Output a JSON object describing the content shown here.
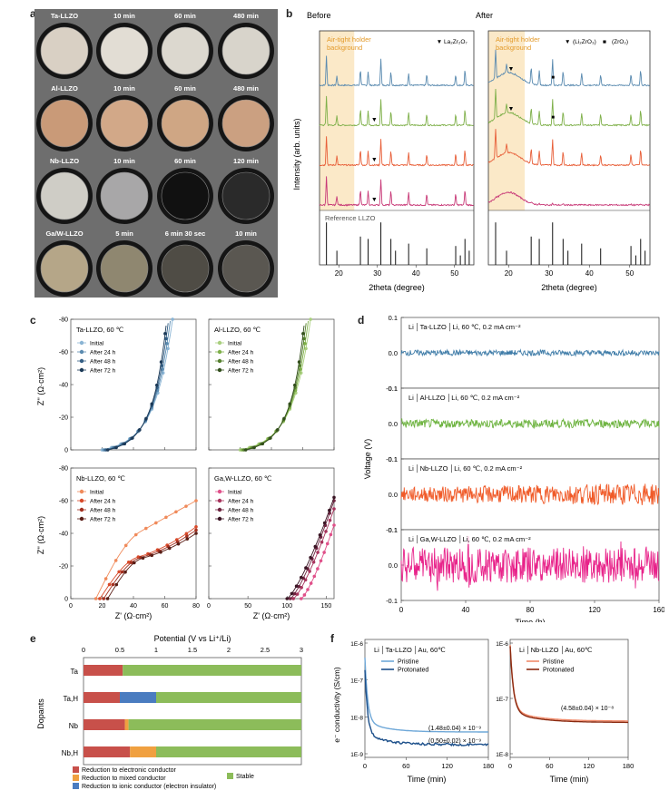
{
  "panel_labels": {
    "a": "a",
    "b": "b",
    "c": "c",
    "d": "d",
    "e": "e",
    "f": "f"
  },
  "panel_a": {
    "rows": [
      {
        "name": "Ta-LLZO",
        "times": [
          "10 min",
          "60 min",
          "480 min"
        ],
        "colors": [
          "#d9d0c4",
          "#e2ddd4",
          "#dcd8cf",
          "#d8d4cb"
        ]
      },
      {
        "name": "Al-LLZO",
        "times": [
          "10 min",
          "60 min",
          "480 min"
        ],
        "colors": [
          "#c99a78",
          "#d2a888",
          "#cfa684",
          "#cba081"
        ]
      },
      {
        "name": "Nb-LLZO",
        "times": [
          "10 min",
          "60 min",
          "120 min"
        ],
        "colors": [
          "#cfcdc6",
          "#a8a7a8",
          "#111111",
          "#2a2a2a"
        ]
      },
      {
        "name": "Ga/W-LLZO",
        "times": [
          "5 min",
          "6 min 30 sec",
          "10 min"
        ],
        "colors": [
          "#b5a688",
          "#8f8770",
          "#4f4c45",
          "#5a5751"
        ]
      }
    ]
  },
  "chart_data": [
    {
      "panel": "b-before",
      "type": "line",
      "title": "Before",
      "xlabel": "2theta (degree)",
      "ylabel": "Intensity (arb. units)",
      "xlim": [
        15,
        55
      ],
      "shaded_label": "Air-tight holder background",
      "marker_label": "La₂Zr₂O₇",
      "reference_label": "Reference LLZO",
      "xticks": [
        20,
        30,
        40,
        50
      ],
      "series_colors": [
        "#5b8bb0",
        "#7fb04a",
        "#e8603a",
        "#c83a78"
      ],
      "reference_peaks": [
        [
          16.8,
          0.9
        ],
        [
          19.5,
          0.3
        ],
        [
          25.6,
          0.6
        ],
        [
          27.6,
          0.55
        ],
        [
          30.9,
          0.9
        ],
        [
          33.5,
          0.55
        ],
        [
          34.7,
          0.3
        ],
        [
          38.1,
          0.45
        ],
        [
          42.8,
          0.35
        ],
        [
          50.3,
          0.4
        ],
        [
          51.5,
          0.2
        ],
        [
          52.7,
          0.55
        ],
        [
          53.8,
          0.3
        ]
      ]
    },
    {
      "panel": "b-after",
      "type": "line",
      "title": "After",
      "xlabel": "2theta (degree)",
      "xlim": [
        15,
        55
      ],
      "shaded_label": "Air-tight holder background",
      "marker_label_1": "(Li₂ZrO₃)",
      "marker_label_2": "(ZrO₂)",
      "xticks": [
        20,
        30,
        40,
        50
      ],
      "series_colors": [
        "#5b8bb0",
        "#7fb04a",
        "#e8603a",
        "#c83a78"
      ]
    },
    {
      "panel": "c-ta",
      "type": "line",
      "title": "Ta-LLZO, 60 ℃",
      "xlim": [
        0,
        80
      ],
      "ylim": [
        0,
        -80
      ],
      "xticks": [
        0,
        20,
        40,
        60,
        80
      ],
      "yticks": [
        0,
        -20,
        -40,
        -60,
        -80
      ],
      "series": [
        {
          "name": "Initial",
          "color": "#8ab4d4"
        },
        {
          "name": "After 24 h",
          "color": "#5b8bb0"
        },
        {
          "name": "After 48 h",
          "color": "#345f85"
        },
        {
          "name": "After 72 h",
          "color": "#1c3a58"
        }
      ]
    },
    {
      "panel": "c-al",
      "type": "line",
      "title": "Al-LLZO, 60 ℃",
      "xlim": [
        0,
        80
      ],
      "ylim": [
        0,
        -80
      ],
      "xticks": [
        0,
        20,
        40,
        60,
        80
      ],
      "yticks": [
        0,
        -20,
        -40,
        -60,
        -80
      ],
      "series": [
        {
          "name": "Initial",
          "color": "#a9cf7e"
        },
        {
          "name": "After 24 h",
          "color": "#7fb04a"
        },
        {
          "name": "After 48 h",
          "color": "#55802e"
        },
        {
          "name": "After 72 h",
          "color": "#334f1c"
        }
      ]
    },
    {
      "panel": "c-nb",
      "type": "line",
      "title": "Nb-LLZO, 60 ℃",
      "xlim": [
        0,
        80
      ],
      "ylim": [
        0,
        -80
      ],
      "xticks": [
        0,
        20,
        40,
        60,
        80
      ],
      "yticks": [
        0,
        -20,
        -40,
        -60,
        -80
      ],
      "series": [
        {
          "name": "Initial",
          "color": "#f08a5a"
        },
        {
          "name": "After 24 h",
          "color": "#d84a2a"
        },
        {
          "name": "After 48 h",
          "color": "#a33020"
        },
        {
          "name": "After 72 h",
          "color": "#5a1e16"
        }
      ]
    },
    {
      "panel": "c-ga",
      "type": "line",
      "title": "Ga,W-LLZO, 60 ℃",
      "xlim": [
        0,
        160
      ],
      "ylim": [
        0,
        -80
      ],
      "xticks": [
        0,
        50,
        100,
        150
      ],
      "yticks": [
        0,
        -20,
        -40,
        -60,
        -80
      ],
      "series": [
        {
          "name": "Initial",
          "color": "#e0508a"
        },
        {
          "name": "After 24 h",
          "color": "#a8345e"
        },
        {
          "name": "After 48 h",
          "color": "#6e2440"
        },
        {
          "name": "After 72 h",
          "color": "#3a1524"
        }
      ]
    },
    {
      "panel": "d",
      "type": "line",
      "xlabel": "Time (h)",
      "ylabel": "Voltage (V)",
      "xlim": [
        0,
        160
      ],
      "xticks": [
        0,
        40,
        80,
        120,
        160
      ],
      "subplots": [
        {
          "label": "Li │Ta-LLZO │Li, 60 ℃, 0.2 mA cm⁻²",
          "color": "#3f7ca8",
          "amp": 0.008,
          "ylim": [
            -0.1,
            0.1
          ]
        },
        {
          "label": "Li │Al-LLZO │Li, 60 ℃, 0.2 mA cm⁻²",
          "color": "#6db33f",
          "amp": 0.012,
          "ylim": [
            -0.1,
            0.1
          ]
        },
        {
          "label": "Li │Nb-LLZO │Li, 60 ℃, 0.2 mA cm⁻²",
          "color": "#f05a28",
          "amp": 0.02,
          "ylim": [
            -0.1,
            0.1
          ]
        },
        {
          "label": "Li │Ga,W-LLZO │Li, 60 ℃, 0.2 mA cm⁻²",
          "color": "#e8238a",
          "amp": 0.05,
          "ylim": [
            -0.1,
            0.1
          ]
        }
      ],
      "yticks": [
        "0.1",
        "0.0",
        "-0.1"
      ]
    },
    {
      "panel": "e",
      "type": "bar",
      "title": "Potential (V vs Li⁺/Li)",
      "ylabel": "Dopants",
      "xlim": [
        0,
        3
      ],
      "xticks": [
        "0",
        "0.5",
        "1",
        "1.5",
        "2",
        "2.5",
        "3"
      ],
      "categories": [
        "Ta",
        "Ta,H",
        "Nb",
        "Nb,H"
      ],
      "segments": [
        [
          {
            "type": "electronic",
            "from": 0,
            "to": 0.54
          },
          {
            "type": "stable",
            "from": 0.54,
            "to": 3
          }
        ],
        [
          {
            "type": "electronic",
            "from": 0,
            "to": 0.5
          },
          {
            "type": "ionic",
            "from": 0.5,
            "to": 1.0
          },
          {
            "type": "stable",
            "from": 1.0,
            "to": 3
          }
        ],
        [
          {
            "type": "electronic",
            "from": 0,
            "to": 0.57
          },
          {
            "type": "mixed",
            "from": 0.57,
            "to": 0.62
          },
          {
            "type": "stable",
            "from": 0.62,
            "to": 3
          }
        ],
        [
          {
            "type": "electronic",
            "from": 0,
            "to": 0.64
          },
          {
            "type": "mixed",
            "from": 0.64,
            "to": 1.0
          },
          {
            "type": "stable",
            "from": 1.0,
            "to": 3
          }
        ]
      ],
      "legend": [
        {
          "type": "electronic",
          "label": "Reduction to electronic conductor",
          "color": "#c8504a"
        },
        {
          "type": "mixed",
          "label": "Reduction to mixed conductor",
          "color": "#f0a040"
        },
        {
          "type": "ionic",
          "label": "Reduction to ionic conductor (electron insulator)",
          "color": "#4a7cc0"
        },
        {
          "type": "stable",
          "label": "Stable",
          "color": "#8cbc5a"
        }
      ]
    },
    {
      "panel": "f-ta",
      "type": "line",
      "title": "Li │Ta-LLZO │Au, 60℃",
      "xlabel": "Time (min)",
      "ylabel": "e⁻ conductivity (S/cm)",
      "xlim": [
        0,
        180
      ],
      "xticks": [
        0,
        60,
        120,
        180
      ],
      "yticks": [
        "1E-6",
        "1E-7",
        "1E-8",
        "1E-9"
      ],
      "series": [
        {
          "name": "Pristine",
          "color": "#6fa8d8",
          "final": 1.48e-09
        },
        {
          "name": "Protonated",
          "color": "#1c4f8a",
          "final": 5e-10
        }
      ],
      "annotations": [
        "(1.48±0.04) × 10⁻⁹",
        "(0.50±0.02) × 10⁻⁹"
      ]
    },
    {
      "panel": "f-nb",
      "type": "line",
      "title": "Li │Nb-LLZO │Au, 60℃",
      "xlabel": "Time (min)",
      "xlim": [
        0,
        180
      ],
      "xticks": [
        0,
        60,
        120,
        180
      ],
      "yticks": [
        "1E-6",
        "1E-7",
        "1E-8"
      ],
      "series": [
        {
          "name": "Pristine",
          "color": "#f08a6a",
          "final": 4.58e-08
        },
        {
          "name": "Protonated",
          "color": "#8a2a10",
          "final": 4.58e-08
        }
      ],
      "annotations": [
        "(4.58±0.04) × 10⁻⁸"
      ]
    }
  ]
}
